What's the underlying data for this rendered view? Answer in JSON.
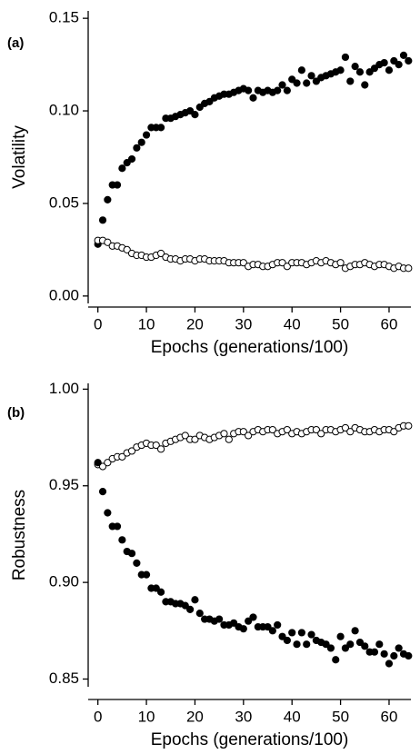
{
  "chart_data": [
    {
      "type": "scatter",
      "panel_label": "(a)",
      "ylabel": "Volatility",
      "xlabel": "Epochs (generations/100)",
      "x": [
        0,
        1,
        2,
        3,
        4,
        5,
        6,
        7,
        8,
        9,
        10,
        11,
        12,
        13,
        14,
        15,
        16,
        17,
        18,
        19,
        20,
        21,
        22,
        23,
        24,
        25,
        26,
        27,
        28,
        29,
        30,
        31,
        32,
        33,
        34,
        35,
        36,
        37,
        38,
        39,
        40,
        41,
        42,
        43,
        44,
        45,
        46,
        47,
        48,
        49,
        50,
        51,
        52,
        53,
        54,
        55,
        56,
        57,
        58,
        59,
        60,
        61,
        62,
        63,
        64
      ],
      "series": [
        {
          "color": "#000000",
          "fill": "#000000",
          "values": [
            0.028,
            0.041,
            0.052,
            0.06,
            0.06,
            0.069,
            0.072,
            0.074,
            0.08,
            0.083,
            0.087,
            0.091,
            0.091,
            0.091,
            0.096,
            0.096,
            0.097,
            0.098,
            0.099,
            0.1,
            0.098,
            0.102,
            0.104,
            0.105,
            0.107,
            0.108,
            0.109,
            0.109,
            0.11,
            0.111,
            0.112,
            0.111,
            0.107,
            0.111,
            0.11,
            0.111,
            0.11,
            0.111,
            0.114,
            0.111,
            0.117,
            0.115,
            0.122,
            0.115,
            0.119,
            0.116,
            0.118,
            0.119,
            0.12,
            0.121,
            0.122,
            0.129,
            0.116,
            0.124,
            0.121,
            0.114,
            0.121,
            0.123,
            0.125,
            0.126,
            0.122,
            0.127,
            0.125,
            0.13,
            0.127
          ]
        },
        {
          "color": "#000000",
          "fill": "#ffffff",
          "values": [
            0.03,
            0.03,
            0.029,
            0.027,
            0.027,
            0.026,
            0.025,
            0.023,
            0.022,
            0.022,
            0.021,
            0.021,
            0.022,
            0.023,
            0.021,
            0.02,
            0.02,
            0.019,
            0.02,
            0.02,
            0.019,
            0.02,
            0.02,
            0.019,
            0.019,
            0.019,
            0.019,
            0.018,
            0.018,
            0.018,
            0.018,
            0.016,
            0.017,
            0.017,
            0.016,
            0.016,
            0.017,
            0.018,
            0.018,
            0.016,
            0.018,
            0.018,
            0.018,
            0.017,
            0.018,
            0.019,
            0.018,
            0.019,
            0.018,
            0.017,
            0.018,
            0.015,
            0.016,
            0.017,
            0.017,
            0.018,
            0.017,
            0.016,
            0.017,
            0.017,
            0.016,
            0.015,
            0.016,
            0.015,
            0.015
          ]
        }
      ],
      "xlim": [
        -2,
        64.5
      ],
      "xticks": [
        0,
        10,
        20,
        30,
        40,
        50,
        60
      ],
      "ylim": [
        -0.004,
        0.154
      ],
      "yticks": [
        {
          "value": 0,
          "label": "0.00"
        },
        0.05,
        {
          "value": 0.1,
          "label": "0.10"
        },
        0.15
      ]
    },
    {
      "type": "scatter",
      "panel_label": "(b)",
      "ylabel": "Robustness",
      "xlabel": "Epochs (generations/100)",
      "x": [
        0,
        1,
        2,
        3,
        4,
        5,
        6,
        7,
        8,
        9,
        10,
        11,
        12,
        13,
        14,
        15,
        16,
        17,
        18,
        19,
        20,
        21,
        22,
        23,
        24,
        25,
        26,
        27,
        28,
        29,
        30,
        31,
        32,
        33,
        34,
        35,
        36,
        37,
        38,
        39,
        40,
        41,
        42,
        43,
        44,
        45,
        46,
        47,
        48,
        49,
        50,
        51,
        52,
        53,
        54,
        55,
        56,
        57,
        58,
        59,
        60,
        61,
        62,
        63,
        64
      ],
      "series": [
        {
          "color": "#000000",
          "fill": "#ffffff",
          "values": [
            0.961,
            0.96,
            0.962,
            0.964,
            0.965,
            0.965,
            0.967,
            0.968,
            0.97,
            0.971,
            0.972,
            0.971,
            0.971,
            0.969,
            0.972,
            0.973,
            0.974,
            0.975,
            0.976,
            0.974,
            0.974,
            0.976,
            0.975,
            0.974,
            0.975,
            0.976,
            0.977,
            0.974,
            0.977,
            0.978,
            0.978,
            0.976,
            0.978,
            0.979,
            0.978,
            0.979,
            0.979,
            0.977,
            0.978,
            0.979,
            0.977,
            0.978,
            0.977,
            0.978,
            0.979,
            0.979,
            0.977,
            0.979,
            0.979,
            0.978,
            0.979,
            0.98,
            0.978,
            0.98,
            0.979,
            0.978,
            0.978,
            0.979,
            0.978,
            0.979,
            0.979,
            0.978,
            0.98,
            0.981,
            0.981
          ]
        },
        {
          "color": "#000000",
          "fill": "#000000",
          "values": [
            0.962,
            0.947,
            0.936,
            0.929,
            0.929,
            0.922,
            0.916,
            0.915,
            0.91,
            0.904,
            0.904,
            0.897,
            0.897,
            0.895,
            0.89,
            0.89,
            0.889,
            0.889,
            0.888,
            0.886,
            0.891,
            0.884,
            0.881,
            0.881,
            0.88,
            0.881,
            0.878,
            0.878,
            0.879,
            0.877,
            0.876,
            0.88,
            0.882,
            0.877,
            0.877,
            0.877,
            0.875,
            0.878,
            0.872,
            0.87,
            0.874,
            0.868,
            0.874,
            0.868,
            0.873,
            0.87,
            0.869,
            0.868,
            0.866,
            0.86,
            0.872,
            0.866,
            0.868,
            0.875,
            0.869,
            0.867,
            0.864,
            0.864,
            0.868,
            0.863,
            0.858,
            0.862,
            0.866,
            0.863,
            0.862
          ]
        }
      ],
      "xlim": [
        -2,
        64.5
      ],
      "xticks": [
        0,
        10,
        20,
        30,
        40,
        50,
        60
      ],
      "ylim": [
        0.846,
        1.003
      ],
      "yticks": [
        0.85,
        {
          "value": 0.9,
          "label": "0.90"
        },
        0.95,
        {
          "value": 1,
          "label": "1.00"
        }
      ]
    }
  ]
}
